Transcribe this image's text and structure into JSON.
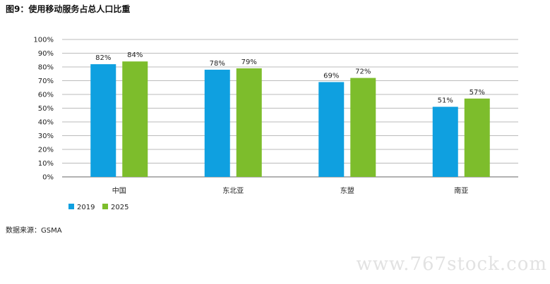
{
  "title": "图9：使用移动服务占总人口比重",
  "source": "数据来源：GSMA",
  "watermark": "www.767stock.com",
  "colors": {
    "s2019": "#0fa0e0",
    "s2025": "#7dbd2c",
    "grid": "#bbbbbb",
    "axis": "#666666"
  },
  "chart_data": {
    "type": "bar",
    "title": "图9：使用移动服务占总人口比重",
    "categories": [
      "中国",
      "东北亚",
      "东盟",
      "南亚"
    ],
    "series": [
      {
        "name": "2019",
        "values": [
          82,
          78,
          69,
          51
        ],
        "labels": [
          "82%",
          "78%",
          "69%",
          "51%"
        ]
      },
      {
        "name": "2025",
        "values": [
          84,
          79,
          72,
          57
        ],
        "labels": [
          "84%",
          "79%",
          "72%",
          "57%"
        ]
      }
    ],
    "ylim": [
      0,
      100
    ],
    "yticks": [
      "0%",
      "10%",
      "20%",
      "30%",
      "40%",
      "50%",
      "60%",
      "70%",
      "80%",
      "90%",
      "100%"
    ],
    "grid": true,
    "legend": "bottom-left"
  }
}
